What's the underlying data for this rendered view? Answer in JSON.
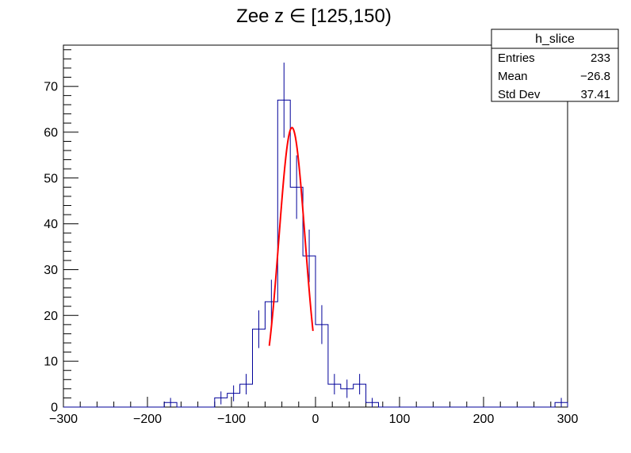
{
  "chart_data": {
    "type": "histogram",
    "title": "Zee z ∈ [125,150)",
    "xlim": [
      -300,
      300
    ],
    "ylim": [
      0,
      79
    ],
    "x_ticks": [
      -300,
      -200,
      -100,
      0,
      100,
      200,
      300
    ],
    "y_ticks": [
      0,
      10,
      20,
      30,
      40,
      50,
      60,
      70
    ],
    "bin_width": 15,
    "bins": [
      {
        "x_low": -180,
        "x_high": -165,
        "count": 1
      },
      {
        "x_low": -120,
        "x_high": -105,
        "count": 2
      },
      {
        "x_low": -105,
        "x_high": -90,
        "count": 3
      },
      {
        "x_low": -90,
        "x_high": -75,
        "count": 5
      },
      {
        "x_low": -75,
        "x_high": -60,
        "count": 17
      },
      {
        "x_low": -60,
        "x_high": -45,
        "count": 23
      },
      {
        "x_low": -45,
        "x_high": -30,
        "count": 67
      },
      {
        "x_low": -30,
        "x_high": -15,
        "count": 48
      },
      {
        "x_low": -15,
        "x_high": 0,
        "count": 33
      },
      {
        "x_low": 0,
        "x_high": 15,
        "count": 18
      },
      {
        "x_low": 15,
        "x_high": 30,
        "count": 5
      },
      {
        "x_low": 30,
        "x_high": 45,
        "count": 4
      },
      {
        "x_low": 45,
        "x_high": 60,
        "count": 5
      },
      {
        "x_low": 60,
        "x_high": 75,
        "count": 1
      },
      {
        "x_low": 285,
        "x_high": 300,
        "count": 1
      }
    ],
    "fit": {
      "type": "gaussian",
      "amplitude": 61,
      "mean": -28,
      "sigma": 15.5,
      "x_range": [
        -55,
        -3
      ],
      "color": "#ff0000"
    },
    "histogram_color": "#000099",
    "stats_box": {
      "title": "h_slice",
      "rows": [
        {
          "label": "Entries",
          "value": "233"
        },
        {
          "label": "Mean",
          "value": "−26.8"
        },
        {
          "label": "Std Dev",
          "value": "37.41"
        }
      ]
    }
  }
}
